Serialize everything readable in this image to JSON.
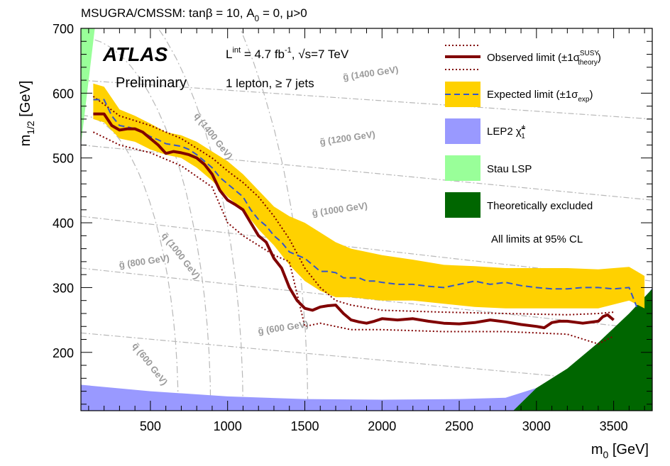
{
  "chart_data": {
    "type": "line",
    "title": "MSUGRA/CMSSM: tanβ = 10, A₀ = 0, μ>0",
    "xlabel": "m₀ [GeV]",
    "ylabel": "m₁/₂ [GeV]",
    "xlim": [
      50,
      3750
    ],
    "ylim": [
      110,
      700
    ],
    "xticks": [
      500,
      1000,
      1500,
      2000,
      2500,
      3000,
      3500
    ],
    "yticks": [
      200,
      300,
      400,
      500,
      600,
      700
    ],
    "annotations": {
      "atlas": "ATLAS",
      "preliminary": "Preliminary",
      "lumi": "Lint = 4.7 fb-1, √s=7 TeV",
      "selection": "1 lepton, ≥ 7 jets",
      "cl_note": "All limits at 95% CL"
    },
    "contour_labels": [
      {
        "text": "g̃ (1400 GeV)",
        "x": 1750,
        "y": 620
      },
      {
        "text": "g̃ (1200 GeV)",
        "x": 1600,
        "y": 520
      },
      {
        "text": "g̃ (1000 GeV)",
        "x": 1550,
        "y": 410
      },
      {
        "text": "g̃ (800 GeV)",
        "x": 300,
        "y": 330
      },
      {
        "text": "g̃ (600 GeV)",
        "x": 1200,
        "y": 228
      },
      {
        "text": "q̃ (1400 GeV)",
        "x": 780,
        "y": 565
      },
      {
        "text": "q̃ (1000 GeV)",
        "x": 570,
        "y": 380
      },
      {
        "text": "q̃ (600 GeV)",
        "x": 380,
        "y": 210
      }
    ],
    "legend": {
      "observed": "Observed limit (±1σ theory SUSY)",
      "expected": "Expected limit (±1σexp)",
      "lep2": "LEP2 χ̃±1",
      "stau": "Stau LSP",
      "theory": "Theoretically excluded"
    },
    "colors": {
      "observed": "#800000",
      "expected_line": "#3355cc",
      "expected_band": "#ffd100",
      "lep2": "#9999ff",
      "stau": "#99ff99",
      "theory": "#006600",
      "contours": "#999999"
    },
    "series": [
      {
        "name": "Observed limit",
        "x": [
          130,
          200,
          250,
          300,
          350,
          400,
          450,
          500,
          550,
          600,
          650,
          700,
          750,
          800,
          850,
          900,
          950,
          1000,
          1050,
          1100,
          1150,
          1200,
          1250,
          1300,
          1350,
          1400,
          1450,
          1500,
          1550,
          1600,
          1650,
          1700,
          1750,
          1800,
          1850,
          1900,
          1950,
          2000,
          2100,
          2200,
          2300,
          2400,
          2500,
          2600,
          2700,
          2800,
          2900,
          3000,
          3050,
          3100,
          3150,
          3200,
          3300,
          3400,
          3430,
          3460,
          3500
        ],
        "y": [
          568,
          568,
          550,
          543,
          545,
          545,
          540,
          530,
          520,
          507,
          510,
          508,
          505,
          500,
          490,
          475,
          450,
          435,
          428,
          420,
          400,
          380,
          370,
          345,
          330,
          300,
          280,
          268,
          265,
          270,
          272,
          273,
          260,
          250,
          247,
          245,
          248,
          252,
          250,
          252,
          248,
          245,
          244,
          246,
          250,
          247,
          243,
          240,
          238,
          246,
          248,
          248,
          245,
          248,
          255,
          258,
          250
        ]
      },
      {
        "name": "Expected limit",
        "x": [
          130,
          200,
          250,
          300,
          350,
          400,
          450,
          500,
          550,
          600,
          650,
          700,
          750,
          800,
          850,
          900,
          950,
          1000,
          1050,
          1100,
          1150,
          1200,
          1250,
          1300,
          1350,
          1400,
          1450,
          1500,
          1550,
          1600,
          1650,
          1700,
          1750,
          1800,
          1850,
          1900,
          1950,
          2000,
          2100,
          2200,
          2300,
          2400,
          2500,
          2600,
          2700,
          2800,
          2900,
          3000,
          3100,
          3200,
          3300,
          3400,
          3500,
          3600,
          3650
        ],
        "y": [
          590,
          590,
          565,
          550,
          548,
          545,
          540,
          533,
          528,
          522,
          520,
          518,
          513,
          505,
          495,
          485,
          470,
          460,
          450,
          440,
          420,
          405,
          395,
          380,
          370,
          355,
          350,
          345,
          335,
          325,
          325,
          323,
          315,
          315,
          315,
          310,
          310,
          308,
          305,
          305,
          302,
          300,
          305,
          310,
          305,
          308,
          303,
          300,
          298,
          298,
          300,
          300,
          298,
          300,
          270
        ]
      }
    ],
    "expected_band": {
      "upper": [
        [
          130,
          615
        ],
        [
          200,
          610
        ],
        [
          300,
          575
        ],
        [
          400,
          565
        ],
        [
          500,
          553
        ],
        [
          600,
          540
        ],
        [
          700,
          535
        ],
        [
          800,
          525
        ],
        [
          900,
          510
        ],
        [
          1000,
          495
        ],
        [
          1100,
          475
        ],
        [
          1200,
          450
        ],
        [
          1300,
          425
        ],
        [
          1400,
          410
        ],
        [
          1500,
          400
        ],
        [
          1600,
          385
        ],
        [
          1700,
          370
        ],
        [
          1800,
          360
        ],
        [
          2000,
          350
        ],
        [
          2200,
          343
        ],
        [
          2400,
          335
        ],
        [
          2600,
          333
        ],
        [
          2800,
          330
        ],
        [
          3000,
          330
        ],
        [
          3200,
          330
        ],
        [
          3400,
          328
        ],
        [
          3600,
          332
        ],
        [
          3700,
          318
        ]
      ],
      "lower": [
        [
          130,
          560
        ],
        [
          200,
          555
        ],
        [
          300,
          530
        ],
        [
          400,
          525
        ],
        [
          500,
          513
        ],
        [
          600,
          505
        ],
        [
          700,
          500
        ],
        [
          800,
          485
        ],
        [
          900,
          465
        ],
        [
          1000,
          440
        ],
        [
          1100,
          420
        ],
        [
          1200,
          390
        ],
        [
          1300,
          365
        ],
        [
          1400,
          335
        ],
        [
          1500,
          310
        ],
        [
          1600,
          295
        ],
        [
          1700,
          285
        ],
        [
          1800,
          285
        ],
        [
          2000,
          280
        ],
        [
          2200,
          280
        ],
        [
          2400,
          275
        ],
        [
          2600,
          270
        ],
        [
          2800,
          268
        ],
        [
          3000,
          268
        ],
        [
          3200,
          268
        ],
        [
          3400,
          268
        ],
        [
          3600,
          280
        ],
        [
          3700,
          268
        ]
      ]
    },
    "theory_band": {
      "upper": [
        [
          130,
          595
        ],
        [
          300,
          565
        ],
        [
          500,
          550
        ],
        [
          700,
          530
        ],
        [
          900,
          500
        ],
        [
          1000,
          480
        ],
        [
          1100,
          462
        ],
        [
          1200,
          440
        ],
        [
          1300,
          410
        ],
        [
          1400,
          375
        ],
        [
          1500,
          330
        ],
        [
          1600,
          300
        ],
        [
          1700,
          280
        ],
        [
          1800,
          273
        ],
        [
          2000,
          265
        ],
        [
          2400,
          262
        ],
        [
          2800,
          260
        ],
        [
          3200,
          258
        ],
        [
          3400,
          260
        ],
        [
          3500,
          262
        ]
      ],
      "lower": [
        [
          130,
          540
        ],
        [
          300,
          520
        ],
        [
          500,
          508
        ],
        [
          700,
          488
        ],
        [
          900,
          455
        ],
        [
          1000,
          400
        ],
        [
          1100,
          380
        ],
        [
          1200,
          365
        ],
        [
          1300,
          350
        ],
        [
          1400,
          340
        ],
        [
          1450,
          290
        ],
        [
          1500,
          240
        ],
        [
          1600,
          245
        ],
        [
          1800,
          235
        ],
        [
          2000,
          235
        ],
        [
          2400,
          232
        ],
        [
          2800,
          232
        ],
        [
          3200,
          228
        ],
        [
          3400,
          213
        ],
        [
          3500,
          225
        ]
      ]
    },
    "lep2_region": [
      [
        50,
        150
      ],
      [
        500,
        140
      ],
      [
        1000,
        132
      ],
      [
        1500,
        128
      ],
      [
        2000,
        127
      ],
      [
        2500,
        128
      ],
      [
        2800,
        130
      ],
      [
        3000,
        145
      ],
      [
        3200,
        162
      ],
      [
        3400,
        195
      ],
      [
        3600,
        245
      ],
      [
        3750,
        300
      ],
      [
        3750,
        110
      ],
      [
        50,
        110
      ]
    ],
    "stau_region": [
      [
        50,
        700
      ],
      [
        140,
        700
      ],
      [
        50,
        520
      ]
    ],
    "theory_region": [
      [
        2850,
        110
      ],
      [
        3000,
        145
      ],
      [
        3200,
        175
      ],
      [
        3400,
        215
      ],
      [
        3600,
        260
      ],
      [
        3750,
        298
      ],
      [
        3750,
        110
      ]
    ]
  }
}
